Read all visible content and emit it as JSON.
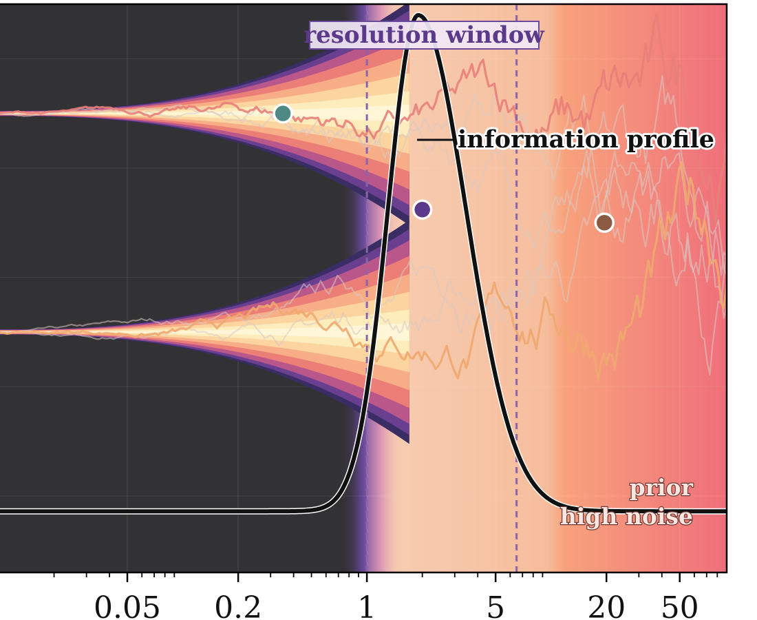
{
  "chart_data": {
    "type": "line",
    "title": "",
    "xlabel": "",
    "ylabel": "",
    "x_scale": "log",
    "xlim": [
      0.01,
      90
    ],
    "ylim": [
      -1.6,
      1.0
    ],
    "x_ticks": [
      0.05,
      0.2,
      1,
      5,
      20,
      50
    ],
    "x_tick_labels": [
      "0.05",
      "0.2",
      "1",
      "5",
      "20",
      "50"
    ],
    "grid": true,
    "annotations": {
      "window_title": "resolution window",
      "profile_label": "information profile",
      "noise_label_line1": "prior",
      "noise_label_line2": "high noise"
    },
    "resolution_window": [
      1,
      6.5
    ],
    "branches": [
      {
        "y": 0.5,
        "color": "#e8807a"
      },
      {
        "y": -0.5,
        "color": "#f0a870"
      }
    ],
    "markers": [
      {
        "x": 0.35,
        "y": 0.5,
        "color": "#4e8a83"
      },
      {
        "x": 2.0,
        "y": 0.06,
        "color": "#5b3a8c"
      },
      {
        "x": 19.5,
        "y": 0.0,
        "color": "#8b5a43"
      }
    ],
    "information_profile": {
      "peak_x": 1.9,
      "peak_value": 0.95,
      "baseline": -1.32,
      "color": "#111111"
    }
  }
}
